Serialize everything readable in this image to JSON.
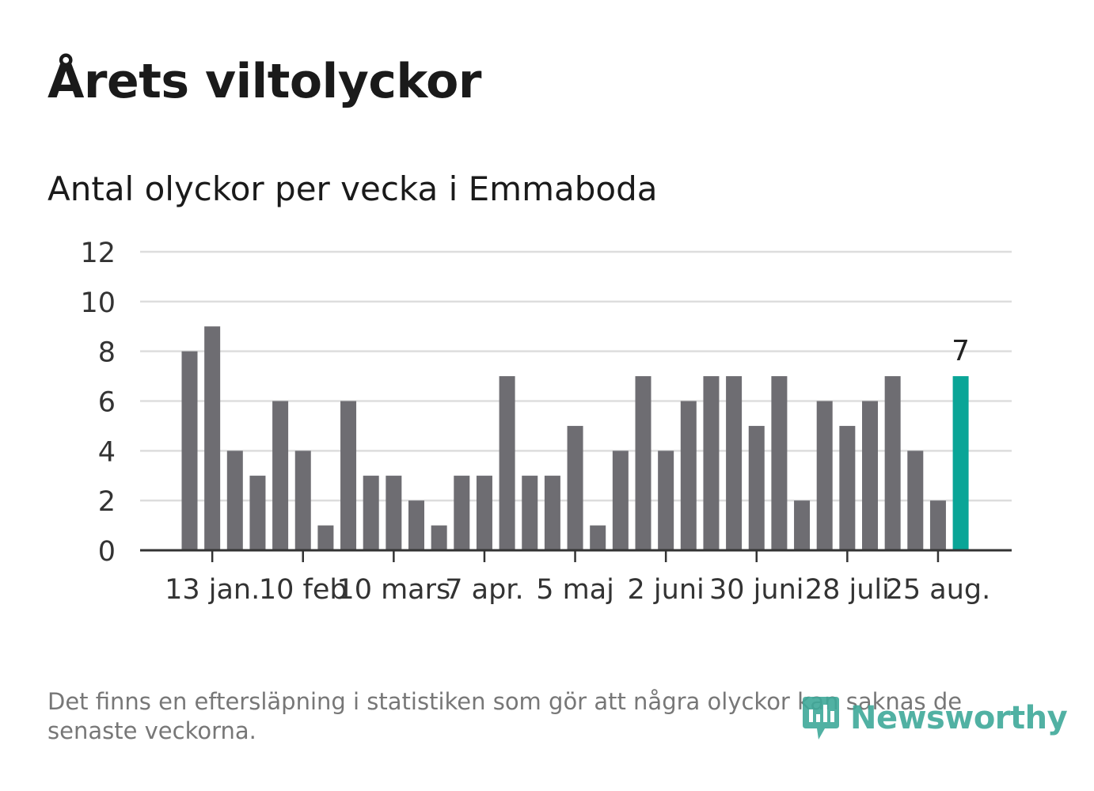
{
  "title": "Årets viltolyckor",
  "subtitle": "Antal olyckor per vecka i Emmaboda",
  "footnote": "Det finns en eftersläpning i statistiken som gör att några olyckor kan saknas de senaste veckorna.",
  "logo_text": "Newsworthy",
  "colors": {
    "bar": "#6e6d72",
    "highlight": "#0aa597",
    "grid": "#dddddd",
    "axis": "#333333",
    "text": "#333333"
  },
  "chart_data": {
    "type": "bar",
    "ylim": [
      0,
      12
    ],
    "yticks": [
      0,
      2,
      4,
      6,
      8,
      10,
      12
    ],
    "grid": true,
    "values": [
      8,
      9,
      4,
      3,
      6,
      4,
      1,
      6,
      3,
      3,
      2,
      1,
      3,
      3,
      7,
      3,
      3,
      5,
      1,
      4,
      7,
      4,
      6,
      7,
      7,
      5,
      7,
      2,
      6,
      5,
      6,
      7,
      4,
      2,
      7
    ],
    "xtick_labels": [
      {
        "label": "13 jan.",
        "index": 1
      },
      {
        "label": "10 feb",
        "index": 5
      },
      {
        "label": "10 mars",
        "index": 9
      },
      {
        "label": "7 apr.",
        "index": 13
      },
      {
        "label": "5 maj",
        "index": 17
      },
      {
        "label": "2 juni",
        "index": 21
      },
      {
        "label": "30 juni",
        "index": 25
      },
      {
        "label": "28 juli",
        "index": 29
      },
      {
        "label": "25 aug.",
        "index": 33
      }
    ],
    "highlight_index": 34,
    "highlight_label": "7"
  }
}
